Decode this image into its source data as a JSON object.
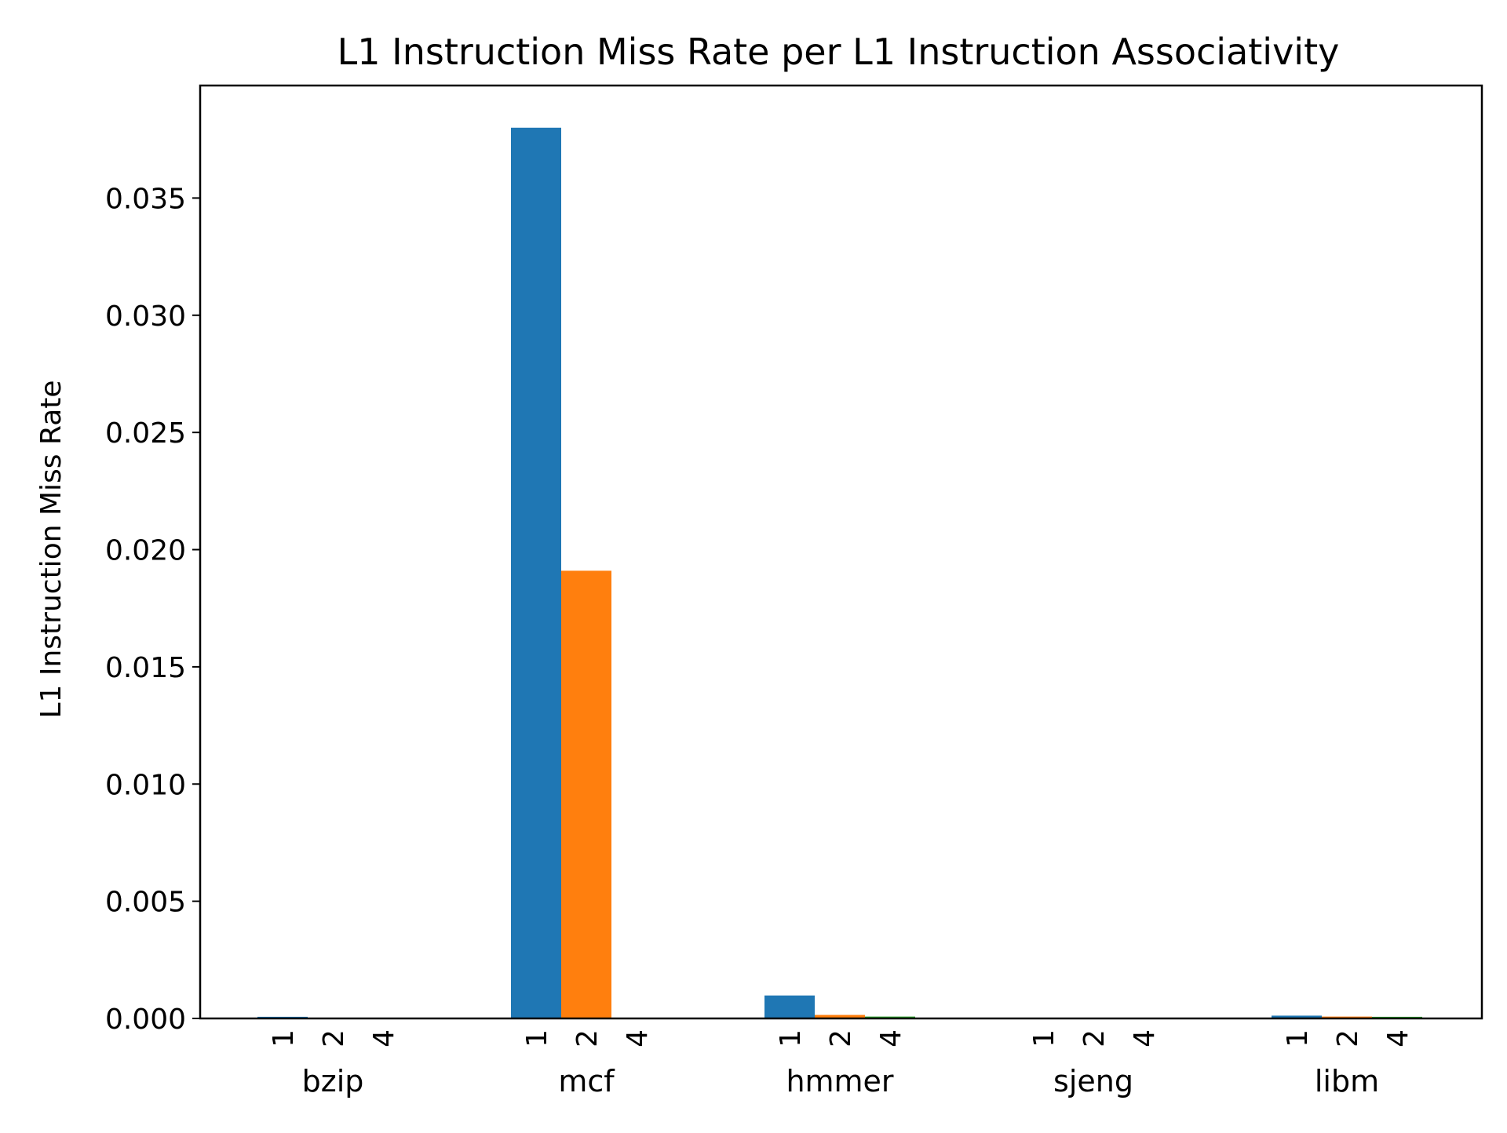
{
  "chart_data": {
    "type": "bar",
    "title": "L1 Instruction Miss Rate per L1 Instruction Associativity",
    "xlabel": "",
    "ylabel": "L1 Instruction Miss Rate",
    "categories": [
      "bzip",
      "mcf",
      "hmmer",
      "sjeng",
      "libm"
    ],
    "sub_labels": [
      "1",
      "2",
      "4"
    ],
    "series": [
      {
        "values": [
          7e-05,
          0.038,
          0.00098,
          0.0,
          0.00012
        ],
        "color": "#1f77b4"
      },
      {
        "values": [
          3e-05,
          0.0191,
          0.00015,
          0.0,
          8e-05
        ],
        "color": "#ff7f0e"
      },
      {
        "values": [
          2e-05,
          0.0,
          8e-05,
          0.0,
          7e-05
        ],
        "color": "#2ca02c"
      }
    ],
    "ylim": [
      0,
      0.0398
    ],
    "yticks": [
      0.0,
      0.005,
      0.01,
      0.015,
      0.02,
      0.025,
      0.03,
      0.035
    ],
    "ytick_labels": [
      "0.000",
      "0.005",
      "0.010",
      "0.015",
      "0.020",
      "0.025",
      "0.030",
      "0.035"
    ],
    "grid": false,
    "legend": "none"
  }
}
